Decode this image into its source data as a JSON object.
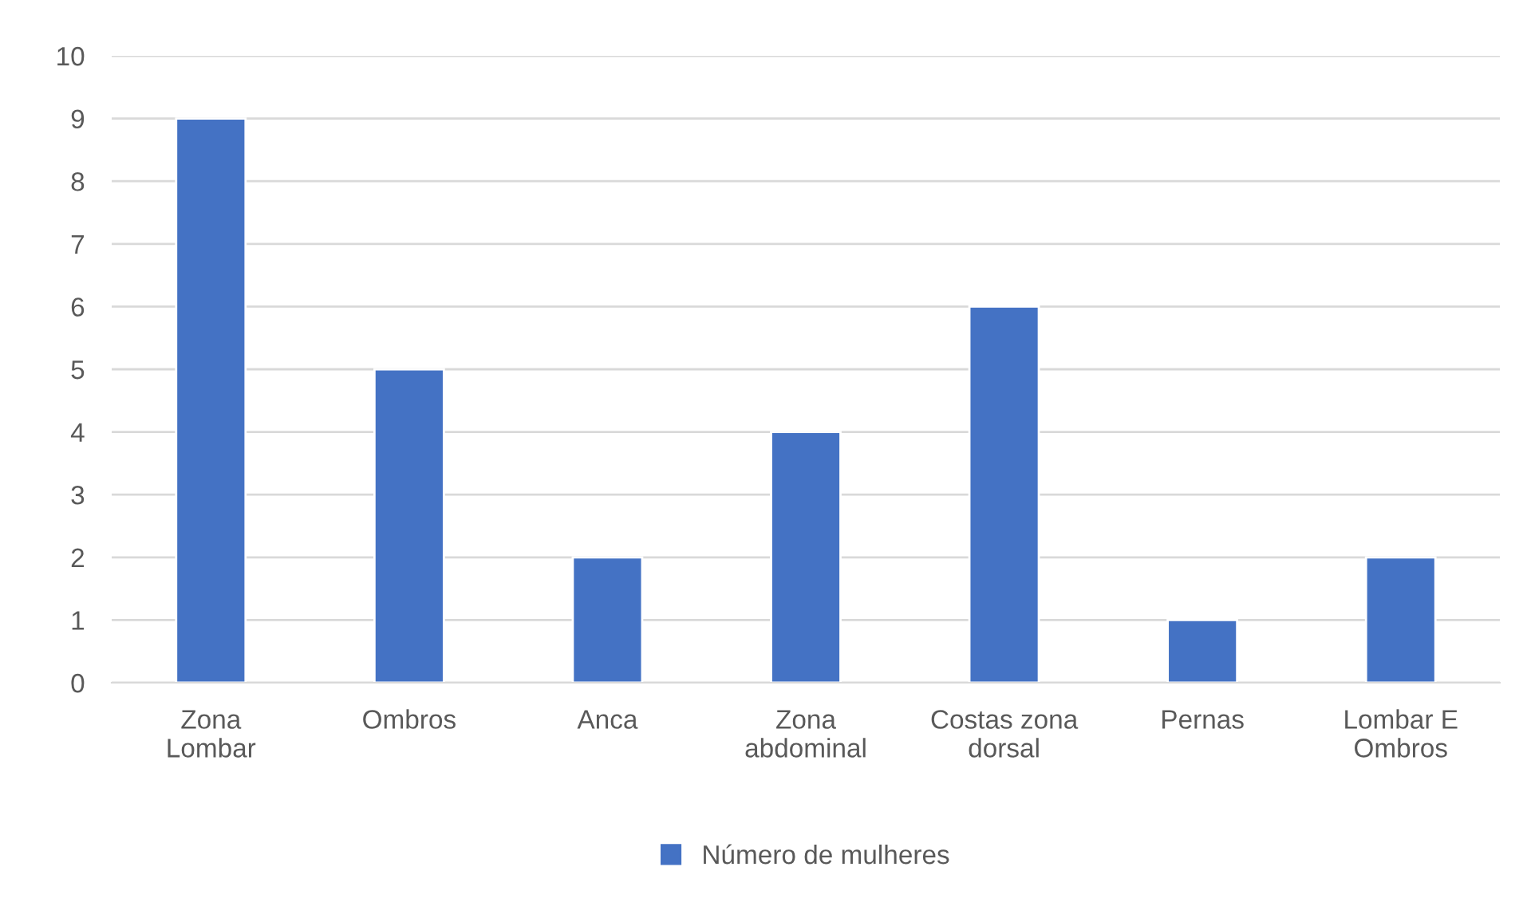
{
  "chart_data": {
    "type": "bar",
    "categories": [
      "Zona\nLombar",
      "Ombros",
      "Anca",
      "Zona\nabdominal",
      "Costas zona\ndorsal",
      "Pernas",
      "Lombar E\nOmbros"
    ],
    "series": [
      {
        "name": "Número de mulheres",
        "color": "#4472c4",
        "values": [
          9,
          5,
          2,
          4,
          6,
          1,
          2
        ]
      }
    ],
    "ylim": [
      0,
      10
    ],
    "yticks": [
      0,
      1,
      2,
      3,
      4,
      5,
      6,
      7,
      8,
      9,
      10
    ],
    "grid": "y",
    "legend": "bottom"
  }
}
